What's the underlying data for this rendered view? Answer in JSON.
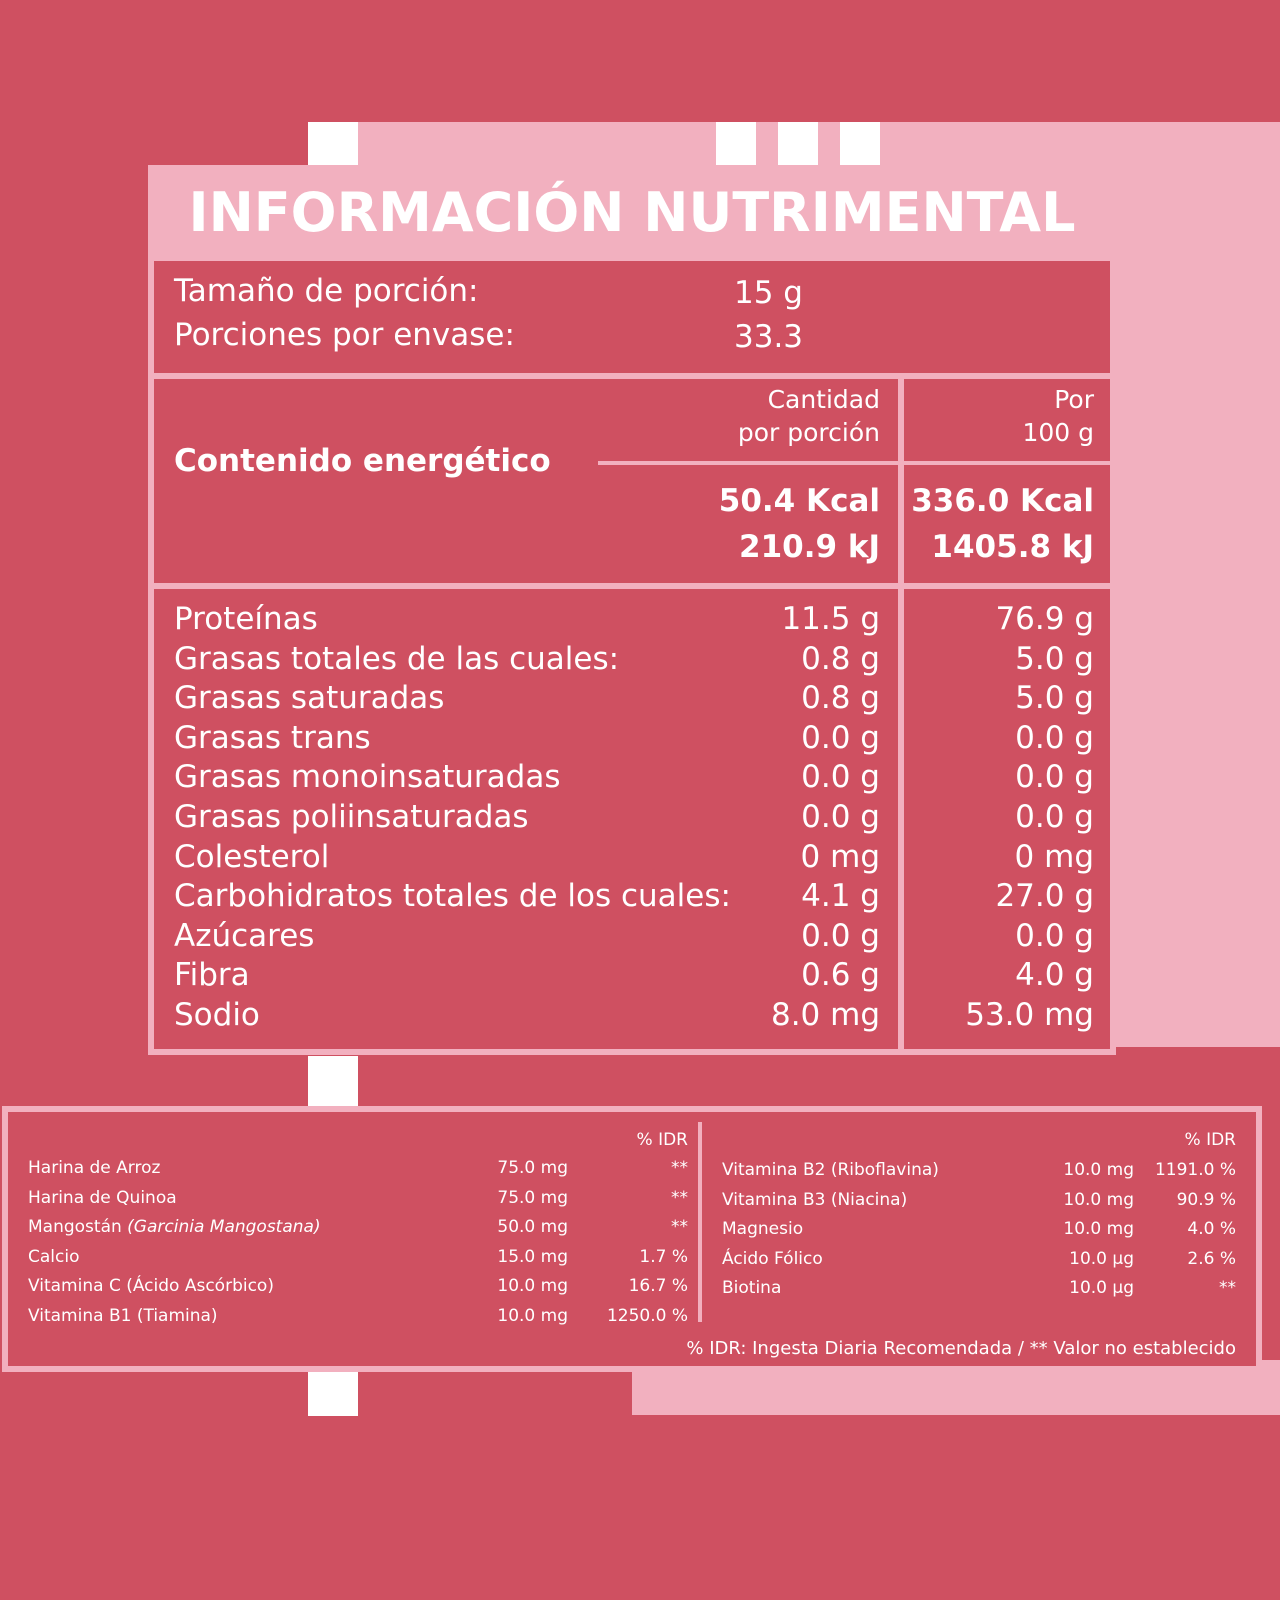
{
  "colors": {
    "background": "#cf5061",
    "accent": "#f2b0bf",
    "white": "#ffffff"
  },
  "title": "INFORMACIÓN NUTRIMENTAL",
  "serving": {
    "size_label": "Tamaño de porción:",
    "size_value": "15 g",
    "count_label": "Porciones por envase:",
    "count_value": "33.3"
  },
  "energy": {
    "label": "Contenido energético",
    "col1_header_line1": "Cantidad",
    "col1_header_line2": "por porción",
    "col2_header_line1": "Por",
    "col2_header_line2": "100 g",
    "portion_kcal": "50.4 Kcal",
    "portion_kj": "210.9 kJ",
    "per100_kcal": "336.0 Kcal",
    "per100_kj": "1405.8 kJ"
  },
  "nutrients": [
    {
      "name": "Proteínas",
      "portion": "11.5 g",
      "per100": "76.9 g"
    },
    {
      "name": "Grasas totales de las cuales:",
      "portion": "0.8 g",
      "per100": "5.0 g"
    },
    {
      "name": "Grasas saturadas",
      "portion": "0.8 g",
      "per100": "5.0 g"
    },
    {
      "name": "Grasas trans",
      "portion": "0.0 g",
      "per100": "0.0 g"
    },
    {
      "name": "Grasas monoinsaturadas",
      "portion": "0.0 g",
      "per100": "0.0 g"
    },
    {
      "name": "Grasas poliinsaturadas",
      "portion": "0.0 g",
      "per100": "0.0 g"
    },
    {
      "name": "Colesterol",
      "portion": "0 mg",
      "per100": "0 mg"
    },
    {
      "name": "Carbohidratos totales de los cuales:",
      "portion": "4.1 g",
      "per100": "27.0 g"
    },
    {
      "name": "Azúcares",
      "portion": "0.0 g",
      "per100": "0.0 g"
    },
    {
      "name": "Fibra",
      "portion": "0.6 g",
      "per100": "4.0 g"
    },
    {
      "name": "Sodio",
      "portion": "8.0 mg",
      "per100": "53.0 mg"
    }
  ],
  "micros": {
    "idr_header": "% IDR",
    "left": [
      {
        "name": "Harina de Arroz",
        "amount": "75.0 mg",
        "idr": "**"
      },
      {
        "name": "Harina de Quinoa",
        "amount": "75.0 mg",
        "idr": "**"
      },
      {
        "name": "Mangostán",
        "name_italic": "(Garcinia Mangostana)",
        "amount": "50.0 mg",
        "idr": "**"
      },
      {
        "name": "Calcio",
        "amount": "15.0 mg",
        "idr": "1.7 %"
      },
      {
        "name": "Vitamina C (Ácido Ascórbico)",
        "amount": "10.0 mg",
        "idr": "16.7 %"
      },
      {
        "name": "Vitamina B1 (Tiamina)",
        "amount": "10.0 mg",
        "idr": "1250.0 %"
      }
    ],
    "right": [
      {
        "name": "Vitamina B2 (Riboflavina)",
        "amount": "10.0 mg",
        "idr": "1191.0 %"
      },
      {
        "name": "Vitamina B3 (Niacina)",
        "amount": "10.0 mg",
        "idr": "90.9 %"
      },
      {
        "name": "Magnesio",
        "amount": "10.0 mg",
        "idr": "4.0 %"
      },
      {
        "name": "Ácido Fólico",
        "amount": "10.0 µg",
        "idr": "2.6 %"
      },
      {
        "name": "Biotina",
        "amount": "10.0 µg",
        "idr": "**"
      }
    ],
    "footnote": "% IDR: Ingesta Diaria Recomendada  /  ** Valor no establecido"
  }
}
